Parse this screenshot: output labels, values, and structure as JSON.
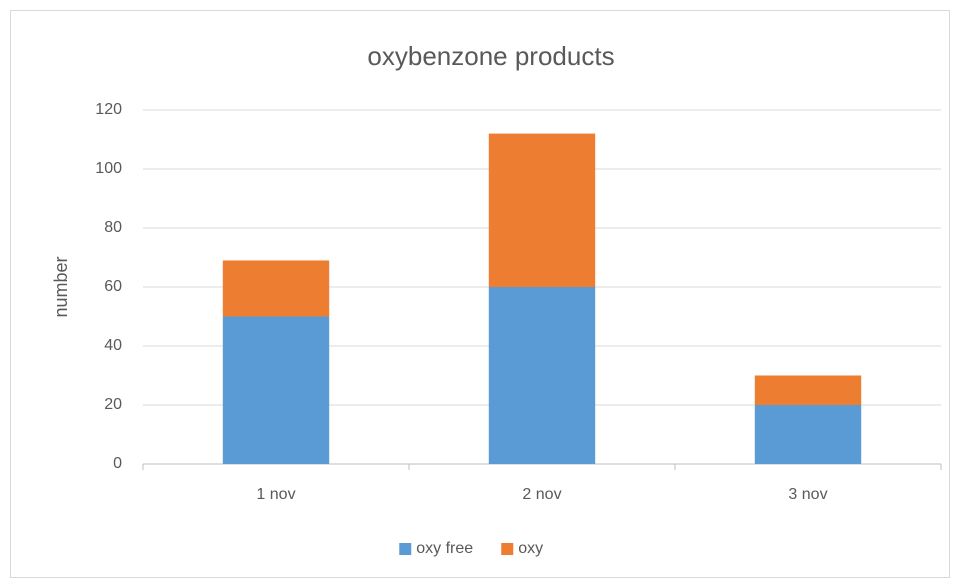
{
  "chart_data": {
    "type": "bar",
    "stacked": true,
    "title": "oxybenzone products",
    "y_label": "number",
    "categories": [
      "1 nov",
      "2 nov",
      "3 nov"
    ],
    "series": [
      {
        "name": "oxy free",
        "color": "#5b9bd5",
        "values": [
          50,
          60,
          20
        ]
      },
      {
        "name": "oxy",
        "color": "#ed7d31",
        "values": [
          19,
          52,
          10
        ]
      }
    ],
    "ylim": [
      0,
      120
    ],
    "yticks": [
      0,
      20,
      40,
      60,
      80,
      100,
      120
    ],
    "grid": true,
    "legend": "bottom"
  }
}
